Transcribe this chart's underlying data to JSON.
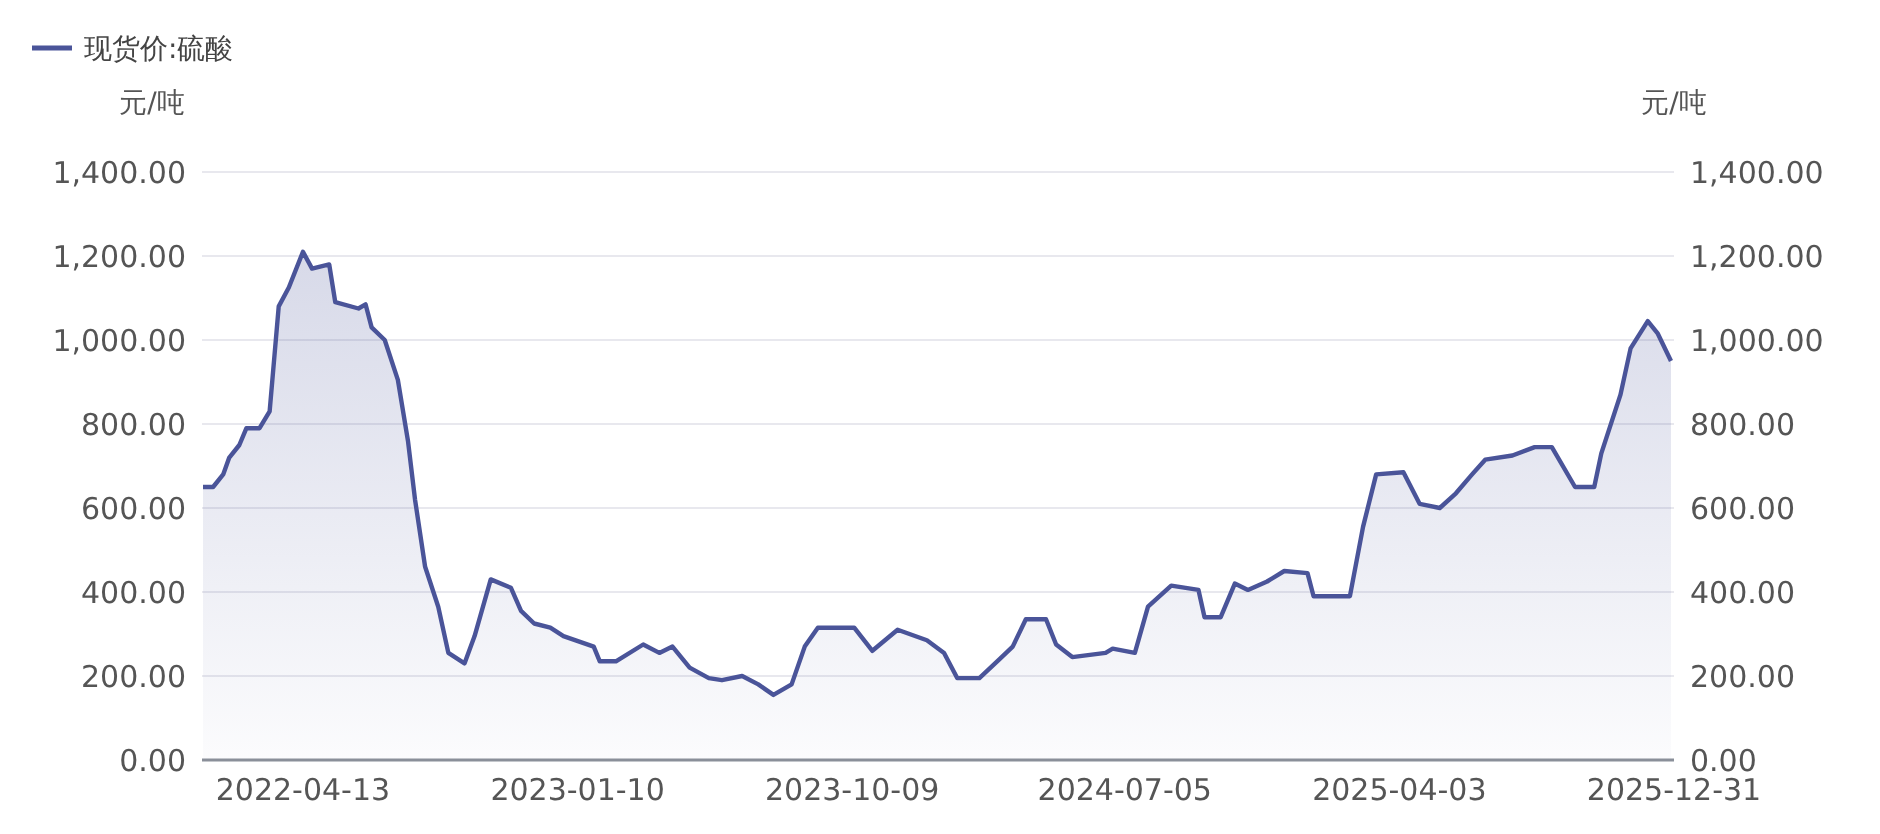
{
  "chart_data": {
    "type": "area",
    "ylabel": "元/吨",
    "y2label": "元/吨",
    "legend": "top left",
    "grid": "y",
    "xlim": [
      "2022-01-03",
      "2025-12-31"
    ],
    "xticks": [
      {
        "value": "2022-04-13",
        "label": "2022-04-13"
      },
      {
        "value": "2023-01-10",
        "label": "2023-01-10"
      },
      {
        "value": "2023-10-09",
        "label": "2023-10-09"
      },
      {
        "value": "2024-07-05",
        "label": "2024-07-05"
      },
      {
        "value": "2025-04-03",
        "label": "2025-04-03"
      },
      {
        "value": "2025-12-31",
        "label": "2025-12-31"
      }
    ],
    "ylim": [
      0,
      1400
    ],
    "yticks": [
      {
        "value": 0,
        "label": "0.00"
      },
      {
        "value": 200,
        "label": "200.00"
      },
      {
        "value": 400,
        "label": "400.00"
      },
      {
        "value": 600,
        "label": "600.00"
      },
      {
        "value": 800,
        "label": "800.00"
      },
      {
        "value": 1000,
        "label": "1,000.00"
      },
      {
        "value": 1200,
        "label": "1,200.00"
      },
      {
        "value": 1400,
        "label": "1,400.00"
      }
    ],
    "y2lim": [
      0,
      1400
    ],
    "y2ticks": [
      {
        "value": 0,
        "label": "0.00"
      },
      {
        "value": 200,
        "label": "200.00"
      },
      {
        "value": 400,
        "label": "400.00"
      },
      {
        "value": 600,
        "label": "600.00"
      },
      {
        "value": 800,
        "label": "800.00"
      },
      {
        "value": 1000,
        "label": "1,000.00"
      },
      {
        "value": 1200,
        "label": "1,200.00"
      },
      {
        "value": 1400,
        "label": "1,400.00"
      }
    ],
    "series": [
      {
        "name": "现货价:硫酸",
        "color": "#4a5499",
        "x": [
          "2022-01-04",
          "2022-01-14",
          "2022-01-24",
          "2022-01-30",
          "2022-02-09",
          "2022-02-16",
          "2022-03-01",
          "2022-03-11",
          "2022-03-20",
          "2022-03-30",
          "2022-04-13",
          "2022-04-22",
          "2022-05-09",
          "2022-05-15",
          "2022-06-07",
          "2022-06-14",
          "2022-06-20",
          "2022-07-03",
          "2022-07-16",
          "2022-07-26",
          "2022-08-02",
          "2022-08-12",
          "2022-08-25",
          "2022-09-04",
          "2022-09-20",
          "2022-09-30",
          "2022-10-16",
          "2022-11-05",
          "2022-11-15",
          "2022-11-28",
          "2022-12-14",
          "2022-12-27",
          "2023-01-26",
          "2023-02-01",
          "2023-02-17",
          "2023-03-16",
          "2023-04-01",
          "2023-04-14",
          "2023-05-01",
          "2023-05-20",
          "2023-06-02",
          "2023-06-22",
          "2023-07-08",
          "2023-07-23",
          "2023-08-10",
          "2023-08-23",
          "2023-09-05",
          "2023-10-11",
          "2023-10-29",
          "2023-11-23",
          "2023-12-22",
          "2024-01-08",
          "2024-01-21",
          "2024-02-12",
          "2024-03-03",
          "2024-03-16",
          "2024-03-29",
          "2024-04-18",
          "2024-04-28",
          "2024-05-14",
          "2024-06-16",
          "2024-06-23",
          "2024-07-15",
          "2024-07-28",
          "2024-08-20",
          "2024-09-16",
          "2024-09-22",
          "2024-10-08",
          "2024-10-22",
          "2024-11-04",
          "2024-11-23",
          "2024-12-10",
          "2025-01-02",
          "2025-01-08",
          "2025-02-13",
          "2025-02-26",
          "2025-03-11",
          "2025-04-07",
          "2025-04-23",
          "2025-05-13",
          "2025-05-29",
          "2025-06-14",
          "2025-06-27",
          "2025-07-24",
          "2025-08-15",
          "2025-09-01",
          "2025-09-24",
          "2025-10-13",
          "2025-10-20",
          "2025-11-08",
          "2025-11-18",
          "2025-12-05",
          "2025-12-15",
          "2025-12-28"
        ],
        "values": [
          650,
          650,
          680,
          720,
          750,
          790,
          790,
          830,
          1080,
          1125,
          1210,
          1170,
          1180,
          1090,
          1075,
          1085,
          1030,
          1000,
          905,
          760,
          620,
          460,
          365,
          255,
          230,
          295,
          430,
          410,
          355,
          325,
          315,
          295,
          270,
          235,
          235,
          275,
          255,
          270,
          220,
          195,
          190,
          200,
          180,
          155,
          180,
          270,
          315,
          315,
          260,
          310,
          285,
          255,
          195,
          195,
          240,
          270,
          335,
          335,
          275,
          245,
          255,
          265,
          255,
          365,
          415,
          405,
          340,
          340,
          420,
          405,
          425,
          450,
          445,
          390,
          390,
          555,
          680,
          685,
          610,
          600,
          635,
          680,
          715,
          725,
          745,
          745,
          650,
          650,
          730,
          870,
          980,
          1045,
          1015,
          950
        ]
      }
    ]
  }
}
